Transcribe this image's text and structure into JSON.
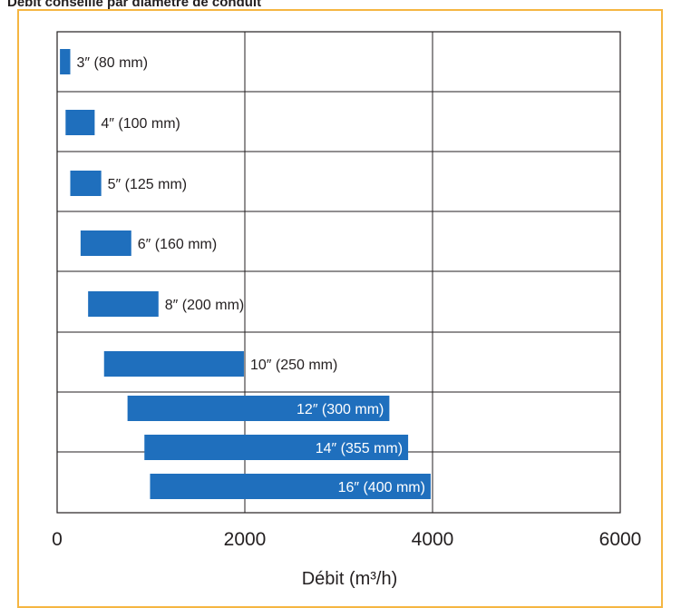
{
  "header": {
    "title_fragment": "Débit conseillé par diamètre de conduit"
  },
  "chart_data": {
    "type": "bar",
    "orientation": "horizontal-range",
    "xlabel": "Débit (m³/h)",
    "xlim": [
      0,
      6000
    ],
    "xticks": [
      0,
      2000,
      4000,
      6000
    ],
    "grid": true,
    "bar_color": "#1f6fbd",
    "frame_color": "#f5b642",
    "categories": [
      "3″ (80 mm)",
      "4″ (100 mm)",
      "5″ (125 mm)",
      "6″ (160 mm)",
      "8″ (200 mm)",
      "10″ (250 mm)",
      "12″ (300 mm)",
      "14″ (355 mm)",
      "16″ (400 mm)"
    ],
    "ranges": [
      [
        30,
        140
      ],
      [
        90,
        400
      ],
      [
        140,
        470
      ],
      [
        250,
        790
      ],
      [
        330,
        1080
      ],
      [
        500,
        1990
      ],
      [
        750,
        3540
      ],
      [
        930,
        3740
      ],
      [
        990,
        3980
      ]
    ],
    "label_inside": [
      false,
      false,
      false,
      false,
      false,
      false,
      true,
      true,
      true
    ]
  }
}
